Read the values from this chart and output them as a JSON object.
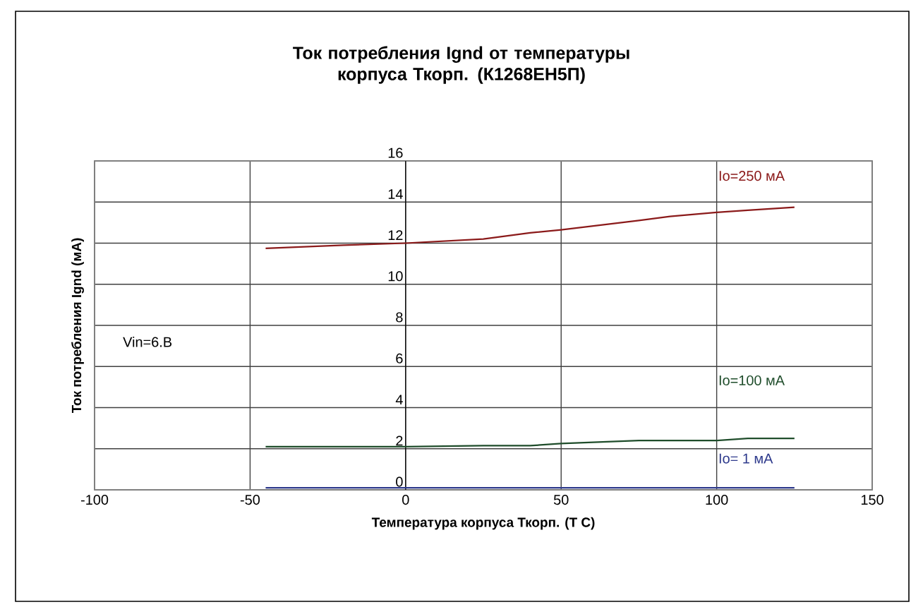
{
  "chart_data": {
    "type": "line",
    "title": "Ток потребления Ignd от температуры корпуса Ткорп. (К1268ЕН5П)",
    "xlabel": "Температура корпуса Ткорп. (Т С)",
    "ylabel": "Ток потребления Ignd (мА)",
    "annotations": [
      "Vin=6.B"
    ],
    "x": [
      -45,
      -20,
      0,
      25,
      40,
      50,
      75,
      85,
      100,
      110,
      125
    ],
    "xlim": [
      -100,
      150
    ],
    "xticks": [
      -100,
      -50,
      0,
      50,
      100,
      150
    ],
    "ylim": [
      0,
      16
    ],
    "yticks": [
      0,
      2,
      4,
      6,
      8,
      10,
      12,
      14,
      16
    ],
    "grid": true,
    "legend": false,
    "marker": "none",
    "line_style": "solid",
    "series": [
      {
        "name": "Io=250 мА",
        "color": "#8b1a1a",
        "values": [
          11.75,
          11.9,
          12.0,
          12.2,
          12.5,
          12.65,
          13.1,
          13.3,
          13.5,
          13.6,
          13.75
        ]
      },
      {
        "name": "Io=100 мА",
        "color": "#1f4d2b",
        "values": [
          2.1,
          2.1,
          2.1,
          2.15,
          2.15,
          2.25,
          2.4,
          2.4,
          2.4,
          2.5,
          2.5
        ]
      },
      {
        "name": "Io= 1 мА",
        "color": "#2e3a8c",
        "values": [
          0.1,
          0.1,
          0.1,
          0.1,
          0.1,
          0.1,
          0.1,
          0.1,
          0.1,
          0.1,
          0.1
        ]
      }
    ]
  }
}
